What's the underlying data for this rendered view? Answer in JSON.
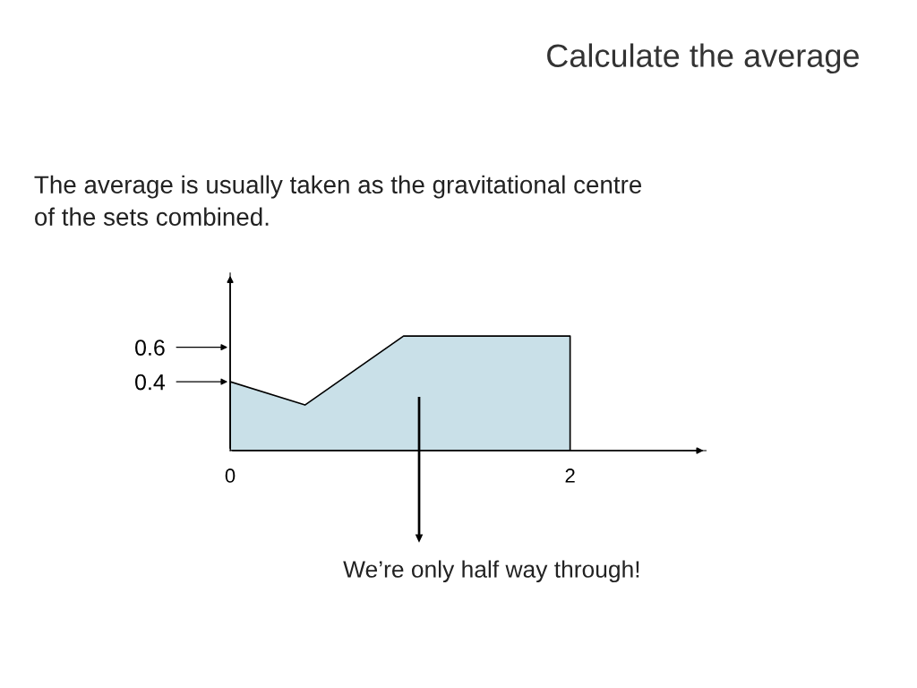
{
  "chart_data": {
    "type": "area",
    "title": "Calculate the average",
    "subtitle": "The average is usually taken as the gravitational centre\nof the sets combined.",
    "x": [
      0,
      0.44,
      1.02,
      2
    ],
    "series": [
      {
        "color": "#c9e0e8",
        "values": [
          0.4,
          0.265,
          0.665,
          0.665
        ]
      }
    ],
    "xlim": [
      0,
      2.8
    ],
    "ylim": [
      0,
      1.03
    ],
    "xticks": [
      0,
      2
    ],
    "yticks": [
      0.4,
      0.6
    ],
    "annotations": [
      "We’re only half way through!"
    ],
    "grid": false,
    "legend": false
  }
}
